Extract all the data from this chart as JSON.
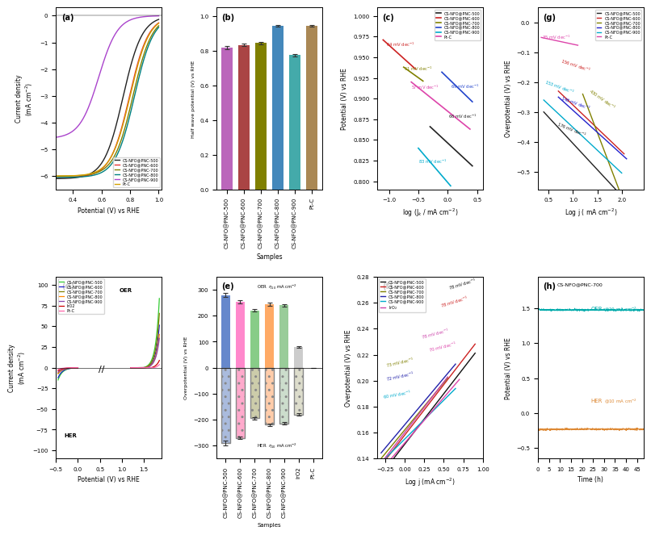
{
  "legend_labels": [
    "CS-NFO@PNC-500",
    "CS-NFO@PNC-600",
    "CS-NFO@PNC-700",
    "CS-NFO@PNC-800",
    "CS-NFO@PNC-900",
    "Pt-C"
  ],
  "legend_labels_oer": [
    "CS-NFO@PNC-500",
    "CS-NFO@PNC-600",
    "CS-NFO@PNC-700",
    "CS-NFO@PNC-800",
    "CS-NFO@PNC-900",
    "IrO2",
    "Pt-C"
  ],
  "colors_a": [
    "#222222",
    "#e63333",
    "#808000",
    "#008080",
    "#aa44cc",
    "#d4a000"
  ],
  "colors_d": [
    "#33cc33",
    "#2222cc",
    "#808000",
    "#ff8800",
    "#8844aa",
    "#cc0000",
    "#ff66aa"
  ],
  "bar_colors_b": [
    "#bb66bb",
    "#aa4444",
    "#808000",
    "#4488bb",
    "#44aaaa",
    "#aa8855"
  ],
  "bar_colors_e_oer": [
    "#6688cc",
    "#ff88cc",
    "#88cc88",
    "#ffaa66",
    "#99cc99",
    "#cccccc",
    "#dddddd"
  ],
  "bar_colors_e_her": [
    "#aabbdd",
    "#ffaacc",
    "#ccccaa",
    "#ffccaa",
    "#ccddcc",
    "#ddddcc",
    "#ccccdd"
  ],
  "half_wave": [
    0.82,
    0.835,
    0.845,
    0.945,
    0.775,
    0.945
  ],
  "half_wave_err": [
    0.01,
    0.008,
    0.008,
    0.005,
    0.008,
    0.005
  ],
  "oer_overpot": [
    280,
    255,
    220,
    245,
    240,
    80,
    0
  ],
  "oer_overpot_err": [
    8,
    6,
    5,
    6,
    5,
    3,
    0
  ],
  "her_overpot": [
    -290,
    -270,
    -195,
    -220,
    -215,
    -180,
    0
  ],
  "her_overpot_err": [
    8,
    5,
    5,
    6,
    5,
    4,
    0
  ],
  "bar_cats_b": [
    "CS-NFO@PNC-500",
    "CS-NFO@PNC-600",
    "CS-NFO@PNC-700",
    "CS-NFO@PNC-800",
    "CS-NFO@PNC-900",
    "Pt-C"
  ],
  "bar_cats_e": [
    "CS-NFO@PNC-500",
    "CS-NFO@PNC-600",
    "CS-NFO@PNC-700",
    "CS-NFO@PNC-800",
    "CS-NFO@PNC-900",
    "IrO2",
    "Pt-C"
  ],
  "colors_f7": [
    "#111111",
    "#cc2222",
    "#808000",
    "#2222aa",
    "#00aacc",
    "#cc44aa",
    "#dd44aa"
  ],
  "colors_g7": [
    "#222222",
    "#cc2222",
    "#808000",
    "#2222cc",
    "#00aacc",
    "#dd44aa"
  ]
}
